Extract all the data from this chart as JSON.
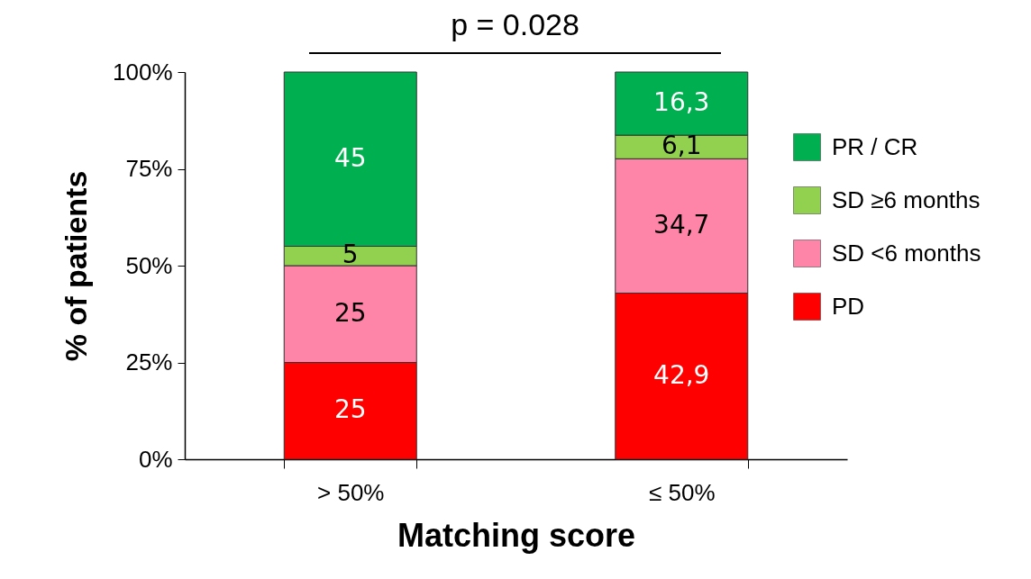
{
  "chart_data": {
    "type": "bar",
    "stacked": true,
    "xlabel": "Matching score",
    "ylabel": "% of patients",
    "categories": [
      "> 50%",
      "≤ 50%"
    ],
    "series": [
      {
        "name": "PD",
        "color": "#ff0000",
        "values": [
          25,
          42.9
        ],
        "value_labels": [
          "25",
          "42,9"
        ]
      },
      {
        "name": "SD <6 months",
        "color": "#ff85a8",
        "values": [
          25,
          34.7
        ],
        "value_labels": [
          "25",
          "34,7"
        ]
      },
      {
        "name": "SD ≥6 months",
        "color": "#92d050",
        "values": [
          5,
          6.1
        ],
        "value_labels": [
          "5",
          "6,1"
        ]
      },
      {
        "name": "PR / CR",
        "color": "#00b050",
        "values": [
          45,
          16.3
        ],
        "value_labels": [
          "45",
          "16,3"
        ]
      }
    ],
    "ylim": [
      0,
      100
    ],
    "yticks": [
      {
        "value": 0,
        "label": "0%"
      },
      {
        "value": 25,
        "label": "25%"
      },
      {
        "value": 50,
        "label": "50%"
      },
      {
        "value": 75,
        "label": "75%"
      },
      {
        "value": 100,
        "label": "100%"
      }
    ],
    "grid": false,
    "legend": "right",
    "annotations": [
      "p = 0.028"
    ]
  }
}
